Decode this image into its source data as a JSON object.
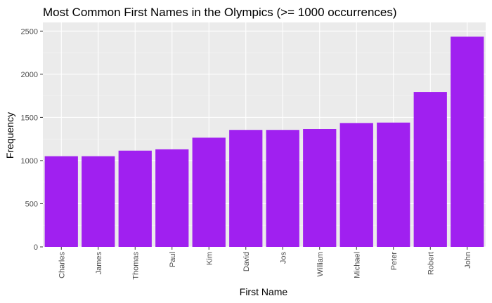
{
  "chart_data": {
    "type": "bar",
    "title": "Most Common First Names in the Olympics (>= 1000 occurrences)",
    "xlabel": "First Name",
    "ylabel": "Frequency",
    "categories": [
      "Charles",
      "James",
      "Thomas",
      "Paul",
      "Kim",
      "David",
      "Jos",
      "William",
      "Michael",
      "Peter",
      "Robert",
      "John"
    ],
    "values": [
      1050,
      1050,
      1115,
      1130,
      1265,
      1355,
      1355,
      1365,
      1435,
      1440,
      1795,
      2435
    ],
    "ylim": [
      0,
      2600
    ],
    "yticks": [
      0,
      500,
      1000,
      1500,
      2000,
      2500
    ],
    "grid": true,
    "colors": {
      "bar": "#A020F0",
      "panel": "#EBEBEB",
      "grid_major": "#FFFFFF",
      "grid_minor": "#F5F5F5",
      "tick": "#333333"
    }
  }
}
